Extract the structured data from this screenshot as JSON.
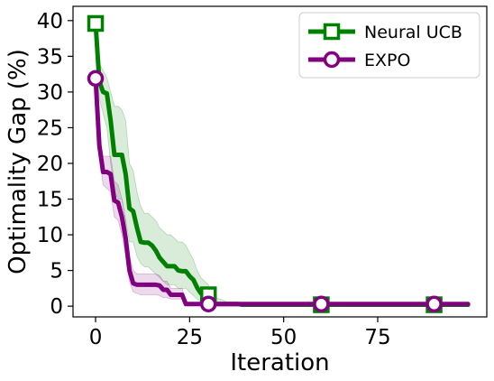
{
  "chart_data": {
    "type": "line",
    "title": "",
    "xlabel": "Iteration",
    "ylabel": "Optimality Gap (%)",
    "xlim": [
      -6,
      104
    ],
    "ylim": [
      -1.5,
      42
    ],
    "xticks": [
      0,
      25,
      50,
      75
    ],
    "yticks": [
      0,
      5,
      10,
      15,
      20,
      25,
      30,
      35,
      40
    ],
    "grid": false,
    "legend_position": "top-right",
    "series": [
      {
        "name": "Neural UCB",
        "color": "#008000",
        "marker": "square",
        "marker_every": 30,
        "x": [
          0,
          1,
          2,
          3,
          4,
          5,
          6,
          7,
          8,
          9,
          10,
          11,
          12,
          13,
          14,
          15,
          16,
          17,
          18,
          19,
          20,
          21,
          22,
          23,
          24,
          25,
          26,
          27,
          28,
          29,
          30,
          31,
          32,
          33,
          34,
          35,
          36,
          37,
          38,
          39,
          40,
          41,
          42,
          43,
          44,
          45,
          46,
          47,
          48,
          49,
          50,
          51,
          52,
          53,
          54,
          55,
          56,
          57,
          58,
          59,
          60,
          61,
          62,
          63,
          64,
          65,
          66,
          67,
          68,
          69,
          70,
          71,
          72,
          73,
          74,
          75,
          76,
          77,
          78,
          79,
          80,
          81,
          82,
          83,
          84,
          85,
          86,
          87,
          88,
          89,
          90,
          91,
          92,
          93,
          94,
          95,
          96,
          97,
          98,
          99
        ],
        "y": [
          39.6,
          31.5,
          30.0,
          29.8,
          26.0,
          21.2,
          21.2,
          21.2,
          18.5,
          13.7,
          13.3,
          11.0,
          9.0,
          8.9,
          8.9,
          8.5,
          7.8,
          6.8,
          6.2,
          5.6,
          5.6,
          5.6,
          5.0,
          4.9,
          4.9,
          4.2,
          3.7,
          2.6,
          1.8,
          1.8,
          1.6,
          0.4,
          0.3,
          0.3,
          0.3,
          0.3,
          0.3,
          0.3,
          0.3,
          0.2,
          0.2,
          0.2,
          0.2,
          0.2,
          0.2,
          0.2,
          0.2,
          0.2,
          0.2,
          0.2,
          0.2,
          0.2,
          0.2,
          0.2,
          0.2,
          0.2,
          0.2,
          0.2,
          0.2,
          0.2,
          0.2,
          0.2,
          0.2,
          0.2,
          0.2,
          0.2,
          0.2,
          0.2,
          0.2,
          0.2,
          0.2,
          0.2,
          0.2,
          0.2,
          0.2,
          0.2,
          0.2,
          0.2,
          0.2,
          0.2,
          0.2,
          0.2,
          0.2,
          0.2,
          0.2,
          0.2,
          0.2,
          0.2,
          0.2,
          0.2,
          0.2,
          0.2,
          0.2,
          0.2,
          0.2,
          0.2,
          0.2,
          0.2,
          0.2,
          0.2
        ],
        "band_lower": [
          39.6,
          29.0,
          27.0,
          25.0,
          20.0,
          16.0,
          15.0,
          15.0,
          12.0,
          9.0,
          9.0,
          7.0,
          6.0,
          5.5,
          5.5,
          5.0,
          4.5,
          4.0,
          3.5,
          3.0,
          3.0,
          3.0,
          2.5,
          2.5,
          2.5,
          2.0,
          1.5,
          1.0,
          0.6,
          0.6,
          0.4,
          0.2,
          0.2,
          0.2,
          0.2,
          0.2,
          0.2,
          0.2,
          0.2,
          0.2,
          0.2,
          0.2,
          0.2,
          0.2,
          0.2,
          0.2,
          0.2,
          0.2,
          0.2,
          0.2,
          0.2,
          0.2,
          0.2,
          0.2,
          0.2,
          0.2,
          0.2,
          0.2,
          0.2,
          0.2,
          0.2,
          0.2,
          0.2,
          0.2,
          0.2,
          0.2,
          0.2,
          0.2,
          0.2,
          0.2,
          0.2,
          0.2,
          0.2,
          0.2,
          0.2,
          0.2,
          0.2,
          0.2,
          0.2,
          0.2,
          0.2,
          0.2,
          0.2,
          0.2,
          0.2,
          0.2,
          0.2,
          0.2,
          0.2,
          0.2,
          0.2,
          0.2,
          0.2,
          0.2,
          0.2,
          0.2,
          0.2,
          0.2,
          0.2,
          0.2
        ],
        "band_upper": [
          39.6,
          34.0,
          33.0,
          32.0,
          30.0,
          28.0,
          28.0,
          27.5,
          26.0,
          20.0,
          19.0,
          16.0,
          14.0,
          13.0,
          13.0,
          12.5,
          12.0,
          11.0,
          10.5,
          10.0,
          10.0,
          9.5,
          9.0,
          9.0,
          8.5,
          7.5,
          6.5,
          5.0,
          4.0,
          3.5,
          3.0,
          1.5,
          1.2,
          1.0,
          0.8,
          0.6,
          0.5,
          0.5,
          0.5,
          0.4,
          0.3,
          0.3,
          0.3,
          0.3,
          0.3,
          0.3,
          0.3,
          0.3,
          0.3,
          0.3,
          0.3,
          0.3,
          0.3,
          0.3,
          0.3,
          0.3,
          0.3,
          0.3,
          0.3,
          0.3,
          0.3,
          0.3,
          0.3,
          0.3,
          0.3,
          0.3,
          0.3,
          0.3,
          0.3,
          0.3,
          0.3,
          0.3,
          0.3,
          0.3,
          0.3,
          0.3,
          0.3,
          0.3,
          0.3,
          0.3,
          0.3,
          0.3,
          0.3,
          0.3,
          0.3,
          0.3,
          0.3,
          0.3,
          0.3,
          0.3,
          0.3,
          0.3,
          0.3,
          0.3,
          0.3,
          0.3,
          0.3,
          0.3,
          0.3,
          0.3
        ]
      },
      {
        "name": "EXPO",
        "color": "#800080",
        "marker": "circle",
        "marker_every": 30,
        "x": [
          0,
          1,
          2,
          3,
          4,
          5,
          6,
          7,
          8,
          9,
          10,
          11,
          12,
          13,
          14,
          15,
          16,
          17,
          18,
          19,
          20,
          21,
          22,
          23,
          24,
          25,
          26,
          27,
          28,
          29,
          30,
          31,
          32,
          33,
          34,
          35,
          36,
          37,
          38,
          39,
          40,
          41,
          42,
          43,
          44,
          45,
          46,
          47,
          48,
          49,
          50,
          51,
          52,
          53,
          54,
          55,
          56,
          57,
          58,
          59,
          60,
          61,
          62,
          63,
          64,
          65,
          66,
          67,
          68,
          69,
          70,
          71,
          72,
          73,
          74,
          75,
          76,
          77,
          78,
          79,
          80,
          81,
          82,
          83,
          84,
          85,
          86,
          87,
          88,
          89,
          90,
          91,
          92,
          93,
          94,
          95,
          96,
          97,
          98,
          99
        ],
        "y": [
          31.9,
          22.5,
          18.8,
          18.8,
          18.5,
          14.8,
          14.5,
          12.5,
          9.5,
          5.0,
          3.2,
          3.0,
          3.0,
          3.0,
          3.0,
          3.0,
          3.0,
          2.9,
          2.3,
          2.3,
          1.6,
          1.6,
          1.6,
          1.6,
          0.3,
          0.3,
          0.3,
          0.3,
          0.3,
          0.3,
          0.3,
          0.3,
          0.3,
          0.3,
          0.3,
          0.3,
          0.3,
          0.3,
          0.3,
          0.3,
          0.3,
          0.3,
          0.3,
          0.3,
          0.3,
          0.3,
          0.3,
          0.3,
          0.3,
          0.3,
          0.3,
          0.3,
          0.3,
          0.3,
          0.3,
          0.3,
          0.3,
          0.3,
          0.3,
          0.3,
          0.3,
          0.3,
          0.3,
          0.3,
          0.3,
          0.3,
          0.3,
          0.3,
          0.3,
          0.3,
          0.3,
          0.3,
          0.3,
          0.3,
          0.3,
          0.3,
          0.3,
          0.3,
          0.3,
          0.3,
          0.3,
          0.3,
          0.3,
          0.3,
          0.3,
          0.3,
          0.3,
          0.3,
          0.3,
          0.3,
          0.3,
          0.3,
          0.3,
          0.3,
          0.3,
          0.3,
          0.3,
          0.3,
          0.3,
          0.3
        ],
        "band_lower": [
          31.9,
          21.0,
          17.0,
          16.5,
          16.0,
          12.5,
          12.0,
          10.0,
          7.0,
          3.5,
          2.0,
          1.8,
          1.6,
          1.6,
          1.6,
          1.6,
          1.6,
          1.5,
          1.2,
          1.2,
          1.0,
          1.0,
          1.0,
          1.0,
          0.2,
          0.2,
          0.2,
          0.2,
          0.2,
          0.2,
          0.2,
          0.2,
          0.2,
          0.2,
          0.2,
          0.2,
          0.2,
          0.2,
          0.2,
          0.2,
          0.2,
          0.2,
          0.2,
          0.2,
          0.2,
          0.2,
          0.2,
          0.2,
          0.2,
          0.2,
          0.2,
          0.2,
          0.2,
          0.2,
          0.2,
          0.2,
          0.2,
          0.2,
          0.2,
          0.2,
          0.2,
          0.2,
          0.2,
          0.2,
          0.2,
          0.2,
          0.2,
          0.2,
          0.2,
          0.2,
          0.2,
          0.2,
          0.2,
          0.2,
          0.2,
          0.2,
          0.2,
          0.2,
          0.2,
          0.2,
          0.2,
          0.2,
          0.2,
          0.2,
          0.2,
          0.2,
          0.2,
          0.2,
          0.2,
          0.2,
          0.2,
          0.2,
          0.2,
          0.2,
          0.2,
          0.2,
          0.2,
          0.2,
          0.2,
          0.2
        ],
        "band_upper": [
          31.9,
          24.0,
          21.0,
          21.0,
          21.0,
          17.5,
          17.0,
          15.0,
          12.0,
          7.0,
          5.0,
          4.5,
          4.5,
          4.5,
          4.5,
          4.5,
          4.5,
          4.3,
          3.5,
          3.5,
          2.5,
          2.5,
          2.5,
          2.5,
          0.6,
          0.4,
          0.4,
          0.4,
          0.4,
          0.4,
          0.4,
          0.4,
          0.4,
          0.4,
          0.4,
          0.4,
          0.4,
          0.4,
          0.4,
          0.4,
          0.4,
          0.4,
          0.4,
          0.4,
          0.4,
          0.4,
          0.4,
          0.4,
          0.4,
          0.4,
          0.4,
          0.4,
          0.4,
          0.4,
          0.4,
          0.4,
          0.4,
          0.4,
          0.4,
          0.4,
          0.4,
          0.4,
          0.4,
          0.4,
          0.4,
          0.4,
          0.4,
          0.4,
          0.4,
          0.4,
          0.4,
          0.4,
          0.4,
          0.4,
          0.4,
          0.4,
          0.4,
          0.4,
          0.4,
          0.4,
          0.4,
          0.4,
          0.4,
          0.4,
          0.4,
          0.4,
          0.4,
          0.4,
          0.4,
          0.4,
          0.4,
          0.4,
          0.4,
          0.4,
          0.4,
          0.4,
          0.4,
          0.4,
          0.4,
          0.4
        ]
      }
    ]
  }
}
